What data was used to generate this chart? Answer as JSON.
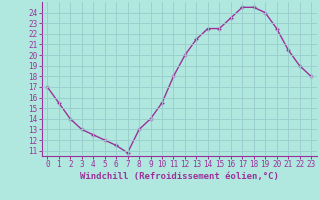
{
  "x": [
    0,
    1,
    2,
    3,
    4,
    5,
    6,
    7,
    8,
    9,
    10,
    11,
    12,
    13,
    14,
    15,
    16,
    17,
    18,
    19,
    20,
    21,
    22,
    23
  ],
  "y": [
    17.0,
    15.5,
    14.0,
    13.0,
    12.5,
    12.0,
    11.5,
    10.8,
    13.0,
    14.0,
    15.5,
    18.0,
    20.0,
    21.5,
    22.5,
    22.5,
    23.5,
    24.5,
    24.5,
    24.0,
    22.5,
    20.5,
    19.0,
    18.0
  ],
  "line_color": "#993399",
  "marker": "+",
  "bg_color": "#b0e8e0",
  "grid_color": "#99cccc",
  "xlabel": "Windchill (Refroidissement éolien,°C)",
  "ylim_min": 10.5,
  "ylim_max": 25.0,
  "yticks": [
    11,
    12,
    13,
    14,
    15,
    16,
    17,
    18,
    19,
    20,
    21,
    22,
    23,
    24
  ],
  "xticks": [
    0,
    1,
    2,
    3,
    4,
    5,
    6,
    7,
    8,
    9,
    10,
    11,
    12,
    13,
    14,
    15,
    16,
    17,
    18,
    19,
    20,
    21,
    22,
    23
  ],
  "tick_color": "#993399",
  "spine_color": "#993399",
  "label_color": "#993399",
  "tick_fontsize": 5.5,
  "xlabel_fontsize": 6.5
}
